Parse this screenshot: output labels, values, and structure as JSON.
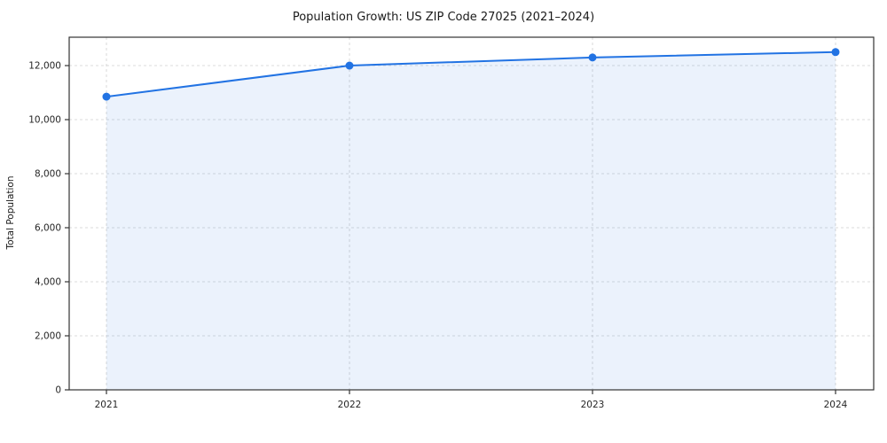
{
  "chart_data": {
    "type": "line",
    "title": "Population Growth: US ZIP Code 27025 (2021–2024)",
    "xlabel": "",
    "ylabel": "Total Population",
    "categories": [
      "2021",
      "2022",
      "2023",
      "2024"
    ],
    "series": [
      {
        "name": "Total Population",
        "values": [
          10850,
          12000,
          12300,
          12500
        ]
      }
    ],
    "ylim": [
      0,
      13050
    ],
    "yticks": [
      0,
      2000,
      4000,
      6000,
      8000,
      10000,
      12000
    ],
    "ytick_labels": [
      "0",
      "2,000",
      "4,000",
      "6,000",
      "8,000",
      "10,000",
      "12,000"
    ],
    "grid": "on",
    "grid_style": "dashed",
    "legend_position": "none",
    "colors": {
      "line": "#2273e3",
      "marker": "#2273e3",
      "area_fill": "#2273e3",
      "area_fill_opacity": 0.09,
      "grid": "#cfcfcf",
      "spine": "#333333",
      "background": "#ffffff"
    }
  }
}
